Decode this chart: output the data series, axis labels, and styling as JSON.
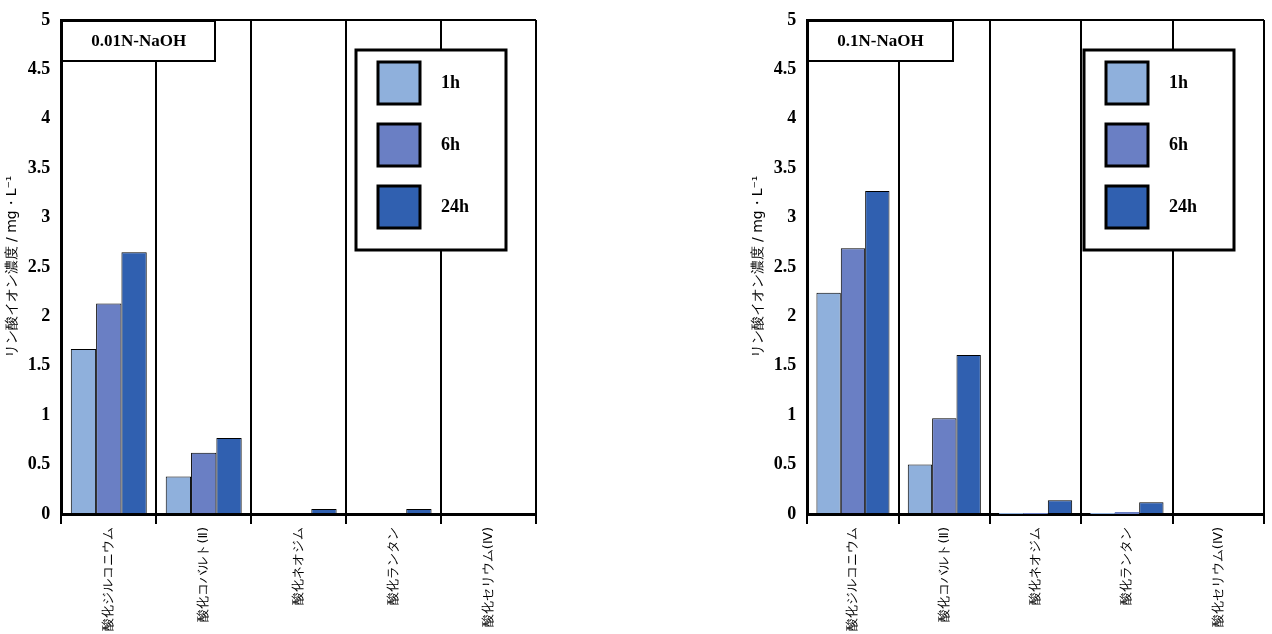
{
  "chart_data": [
    {
      "type": "bar",
      "title": "0.01N-NaOH",
      "ylabel": "リン酸イオン濃度 / mg・L⁻¹",
      "categories": [
        "酸化ジルコニウム",
        "酸化コバルト(Ⅱ)",
        "酸化ネオジム",
        "酸化ランタン",
        "酸化セリウム(Ⅳ)"
      ],
      "series": [
        {
          "name": "1h",
          "color": "#8fb0dc",
          "values": [
            1.67,
            0.38,
            0,
            0,
            0
          ]
        },
        {
          "name": "6h",
          "color": "#6a7fc4",
          "values": [
            2.13,
            0.62,
            0,
            0,
            0
          ]
        },
        {
          "name": "24h",
          "color": "#3060b0",
          "values": [
            2.65,
            0.77,
            0.05,
            0.05,
            0
          ]
        }
      ],
      "ylim": [
        0,
        5
      ],
      "yticks": [
        0,
        0.5,
        1,
        1.5,
        2,
        2.5,
        3,
        3.5,
        4,
        4.5,
        5
      ],
      "grid": "x",
      "legend": "top right"
    },
    {
      "type": "bar",
      "title": "0.1N-NaOH",
      "ylabel": "リン酸イオン濃度 / mg・L⁻¹",
      "categories": [
        "酸化ジルコニウム",
        "酸化コバルト(Ⅱ)",
        "酸化ネオジム",
        "酸化ランタン",
        "酸化セリウム(Ⅳ)"
      ],
      "series": [
        {
          "name": "1h",
          "color": "#8fb0dc",
          "values": [
            2.24,
            0.5,
            0.01,
            0.01,
            0
          ]
        },
        {
          "name": "6h",
          "color": "#6a7fc4",
          "values": [
            2.69,
            0.97,
            0.01,
            0.02,
            0
          ]
        },
        {
          "name": "24h",
          "color": "#3060b0",
          "values": [
            3.27,
            1.61,
            0.14,
            0.12,
            0
          ]
        }
      ],
      "ylim": [
        0,
        5
      ],
      "yticks": [
        0,
        0.5,
        1,
        1.5,
        2,
        2.5,
        3,
        3.5,
        4,
        4.5,
        5
      ],
      "grid": "x",
      "legend": "top right"
    }
  ]
}
